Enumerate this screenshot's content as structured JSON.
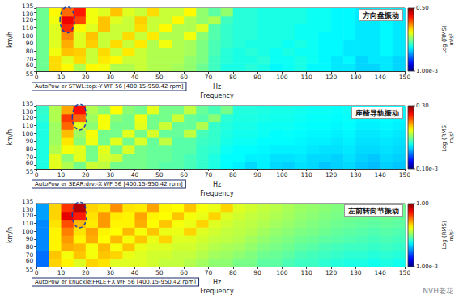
{
  "chart_data": [
    {
      "type": "heatmap",
      "title": "方向盘振动",
      "subtitle": "AutoPow er STWL:top:-Y WF 56 [400.15-950.42 rpm]",
      "xlabel": "Hz",
      "xlabel2": "Frequency",
      "ylabel": "km/h",
      "grid": false,
      "xlim": [
        0,
        150
      ],
      "xticks": [
        0,
        10,
        20,
        30,
        40,
        50,
        60,
        70,
        80,
        90,
        100,
        110,
        120,
        130,
        140,
        150
      ],
      "ylim": [
        55,
        135
      ],
      "yticks": [
        55,
        60,
        70,
        80,
        90,
        100,
        110,
        120,
        130,
        135
      ],
      "colorbar": {
        "label": "Log (RMS)",
        "unit": "m/s²",
        "range": [
          0.001,
          0.5
        ],
        "ticks": [
          {
            "value": 0.5,
            "label": "0.50"
          },
          {
            "value": 0.001,
            "label": "1.00e-3"
          }
        ]
      },
      "x_edges": [
        0,
        5,
        10,
        15,
        20,
        25,
        30,
        35,
        40,
        45,
        50,
        55,
        60,
        65,
        70,
        75,
        80,
        85,
        90,
        95,
        100,
        105,
        110,
        115,
        120,
        125,
        130,
        135,
        140,
        145,
        150
      ],
      "y_edges": [
        55,
        65,
        75,
        85,
        95,
        105,
        115,
        125,
        135
      ],
      "cells": [
        [
          0.02,
          0.06,
          0.05,
          0.03,
          0.05,
          0.045,
          0.03,
          0.03,
          0.035,
          0.03,
          0.03,
          0.028,
          0.025,
          0.02,
          0.015,
          0.012,
          0.012,
          0.013,
          0.012,
          0.01,
          0.011,
          0.012,
          0.01,
          0.01,
          0.009,
          0.009,
          0.008,
          0.008,
          0.009,
          0.008
        ],
        [
          0.02,
          0.06,
          0.04,
          0.06,
          0.035,
          0.055,
          0.05,
          0.035,
          0.035,
          0.03,
          0.03,
          0.03,
          0.025,
          0.022,
          0.015,
          0.013,
          0.012,
          0.012,
          0.013,
          0.011,
          0.011,
          0.012,
          0.011,
          0.01,
          0.009,
          0.01,
          0.008,
          0.009,
          0.009,
          0.008
        ],
        [
          0.02,
          0.045,
          0.07,
          0.065,
          0.035,
          0.06,
          0.035,
          0.055,
          0.035,
          0.03,
          0.03,
          0.03,
          0.028,
          0.022,
          0.016,
          0.013,
          0.012,
          0.013,
          0.012,
          0.011,
          0.012,
          0.011,
          0.011,
          0.01,
          0.01,
          0.009,
          0.009,
          0.009,
          0.01,
          0.009
        ],
        [
          0.02,
          0.04,
          0.08,
          0.04,
          0.065,
          0.035,
          0.06,
          0.035,
          0.055,
          0.03,
          0.045,
          0.03,
          0.028,
          0.022,
          0.016,
          0.014,
          0.013,
          0.012,
          0.012,
          0.012,
          0.011,
          0.012,
          0.011,
          0.01,
          0.01,
          0.009,
          0.009,
          0.009,
          0.01,
          0.009
        ],
        [
          0.02,
          0.04,
          0.1,
          0.04,
          0.07,
          0.035,
          0.035,
          0.06,
          0.035,
          0.055,
          0.03,
          0.03,
          0.045,
          0.024,
          0.017,
          0.014,
          0.013,
          0.013,
          0.012,
          0.012,
          0.012,
          0.011,
          0.011,
          0.01,
          0.01,
          0.01,
          0.009,
          0.009,
          0.01,
          0.009
        ],
        [
          0.02,
          0.04,
          0.18,
          0.05,
          0.04,
          0.07,
          0.035,
          0.035,
          0.06,
          0.035,
          0.05,
          0.03,
          0.03,
          0.04,
          0.017,
          0.014,
          0.013,
          0.013,
          0.012,
          0.012,
          0.012,
          0.011,
          0.011,
          0.011,
          0.01,
          0.01,
          0.009,
          0.009,
          0.01,
          0.009
        ],
        [
          0.02,
          0.045,
          0.25,
          0.15,
          0.045,
          0.07,
          0.04,
          0.035,
          0.065,
          0.035,
          0.035,
          0.05,
          0.03,
          0.025,
          0.03,
          0.015,
          0.013,
          0.013,
          0.012,
          0.012,
          0.012,
          0.012,
          0.011,
          0.011,
          0.01,
          0.01,
          0.009,
          0.009,
          0.01,
          0.009
        ],
        [
          0.02,
          0.05,
          0.12,
          0.2,
          0.045,
          0.04,
          0.07,
          0.04,
          0.035,
          0.06,
          0.035,
          0.035,
          0.05,
          0.025,
          0.018,
          0.025,
          0.013,
          0.013,
          0.012,
          0.012,
          0.012,
          0.012,
          0.011,
          0.011,
          0.01,
          0.01,
          0.009,
          0.009,
          0.01,
          0.009
        ]
      ]
    },
    {
      "type": "heatmap",
      "title": "座椅导轨振动",
      "subtitle": "AutoPow er SEAR:drv:-X WF 56 [400.15-950.42 rpm]",
      "xlabel": "Hz",
      "xlabel2": "Frequency",
      "ylabel": "km/h",
      "grid": false,
      "xlim": [
        0,
        150
      ],
      "xticks": [
        0,
        10,
        20,
        30,
        40,
        50,
        60,
        70,
        80,
        90,
        100,
        110,
        120,
        130,
        140,
        150
      ],
      "ylim": [
        55,
        135
      ],
      "yticks": [
        55,
        60,
        70,
        80,
        90,
        100,
        110,
        120,
        130,
        135
      ],
      "colorbar": {
        "label": "Log (RMS)",
        "unit": "m/s²",
        "range": [
          0.0001,
          0.3
        ],
        "ticks": [
          {
            "value": 0.3,
            "label": "0.30"
          },
          {
            "value": 0.0001,
            "label": "0.10e-3"
          }
        ]
      },
      "x_edges": [
        0,
        5,
        10,
        15,
        20,
        25,
        30,
        35,
        40,
        45,
        50,
        55,
        60,
        65,
        70,
        75,
        80,
        85,
        90,
        95,
        100,
        105,
        110,
        115,
        120,
        125,
        130,
        135,
        140,
        145,
        150
      ],
      "y_edges": [
        55,
        65,
        75,
        85,
        95,
        105,
        115,
        125,
        135
      ],
      "cells": [
        [
          0.0025,
          0.012,
          0.008,
          0.005,
          0.01,
          0.009,
          0.005,
          0.005,
          0.005,
          0.0045,
          0.004,
          0.004,
          0.0035,
          0.003,
          0.0025,
          0.002,
          0.0018,
          0.0015,
          0.0018,
          0.0015,
          0.0014,
          0.0016,
          0.0015,
          0.0013,
          0.0014,
          0.0015,
          0.0013,
          0.0012,
          0.0014,
          0.0013
        ],
        [
          0.0025,
          0.012,
          0.006,
          0.012,
          0.005,
          0.011,
          0.01,
          0.005,
          0.005,
          0.0045,
          0.0045,
          0.004,
          0.0035,
          0.003,
          0.0025,
          0.002,
          0.002,
          0.0018,
          0.0018,
          0.0016,
          0.0016,
          0.0017,
          0.0015,
          0.0015,
          0.0014,
          0.0016,
          0.0014,
          0.0013,
          0.0015,
          0.0014
        ],
        [
          0.0025,
          0.008,
          0.014,
          0.012,
          0.005,
          0.012,
          0.005,
          0.011,
          0.005,
          0.0045,
          0.0045,
          0.004,
          0.004,
          0.003,
          0.0028,
          0.0022,
          0.002,
          0.002,
          0.0019,
          0.0018,
          0.0018,
          0.0018,
          0.0017,
          0.0016,
          0.0016,
          0.0017,
          0.0015,
          0.0015,
          0.0016,
          0.0015
        ],
        [
          0.0025,
          0.007,
          0.018,
          0.006,
          0.013,
          0.005,
          0.012,
          0.005,
          0.011,
          0.0045,
          0.009,
          0.004,
          0.004,
          0.0032,
          0.003,
          0.0024,
          0.0022,
          0.0022,
          0.002,
          0.002,
          0.002,
          0.0019,
          0.0018,
          0.0018,
          0.0017,
          0.0018,
          0.0016,
          0.0016,
          0.0017,
          0.0016
        ],
        [
          0.0025,
          0.007,
          0.025,
          0.007,
          0.014,
          0.005,
          0.005,
          0.012,
          0.005,
          0.011,
          0.0045,
          0.0045,
          0.009,
          0.0035,
          0.003,
          0.0025,
          0.0023,
          0.0023,
          0.0022,
          0.002,
          0.0021,
          0.002,
          0.0019,
          0.0019,
          0.0018,
          0.0019,
          0.0017,
          0.0017,
          0.0018,
          0.0017
        ],
        [
          0.0025,
          0.007,
          0.05,
          0.012,
          0.006,
          0.014,
          0.005,
          0.005,
          0.012,
          0.005,
          0.01,
          0.0045,
          0.0045,
          0.008,
          0.003,
          0.0026,
          0.0024,
          0.0024,
          0.0022,
          0.0022,
          0.0022,
          0.0021,
          0.002,
          0.002,
          0.0019,
          0.002,
          0.0018,
          0.0018,
          0.0019,
          0.0018
        ],
        [
          0.0028,
          0.008,
          0.07,
          0.05,
          0.007,
          0.014,
          0.006,
          0.005,
          0.013,
          0.005,
          0.005,
          0.01,
          0.0045,
          0.004,
          0.006,
          0.0028,
          0.0025,
          0.0025,
          0.0024,
          0.0023,
          0.0023,
          0.0022,
          0.0021,
          0.0021,
          0.002,
          0.0021,
          0.0019,
          0.0019,
          0.002,
          0.0019
        ],
        [
          0.003,
          0.008,
          0.03,
          0.1,
          0.008,
          0.006,
          0.015,
          0.006,
          0.005,
          0.012,
          0.005,
          0.005,
          0.009,
          0.0045,
          0.0035,
          0.005,
          0.0026,
          0.0026,
          0.0025,
          0.0024,
          0.0024,
          0.0023,
          0.0022,
          0.0022,
          0.0021,
          0.0022,
          0.002,
          0.002,
          0.0021,
          0.002
        ]
      ]
    },
    {
      "type": "heatmap",
      "title": "左前转向节振动",
      "subtitle": "AutoPow er knuckle:FRLE+X WF 56 [400.15-950.42 rpm]",
      "xlabel": "Hz",
      "xlabel2": "Frequency",
      "ylabel": "km/h",
      "grid": false,
      "xlim": [
        0,
        150
      ],
      "xticks": [
        0,
        10,
        20,
        30,
        40,
        50,
        60,
        70,
        80,
        90,
        100,
        110,
        120,
        130,
        140,
        150
      ],
      "ylim": [
        55,
        135
      ],
      "yticks": [
        55,
        60,
        70,
        80,
        90,
        100,
        110,
        120,
        130,
        135
      ],
      "colorbar": {
        "label": "Log (RMS)",
        "unit": "m/s²",
        "range": [
          0.001,
          1
        ],
        "ticks": [
          {
            "value": 1,
            "label": "1.00"
          },
          {
            "value": 0.001,
            "label": "1.00e-3"
          }
        ]
      },
      "x_edges": [
        0,
        5,
        10,
        15,
        20,
        25,
        30,
        35,
        40,
        45,
        50,
        55,
        60,
        65,
        70,
        75,
        80,
        85,
        90,
        95,
        100,
        105,
        110,
        115,
        120,
        125,
        130,
        135,
        140,
        145,
        150
      ],
      "y_edges": [
        55,
        65,
        75,
        85,
        95,
        105,
        115,
        125,
        135
      ],
      "cells": [
        [
          0.005,
          0.1,
          0.08,
          0.06,
          0.1,
          0.09,
          0.06,
          0.06,
          0.06,
          0.055,
          0.05,
          0.05,
          0.045,
          0.04,
          0.035,
          0.035,
          0.03,
          0.03,
          0.025,
          0.025,
          0.022,
          0.02,
          0.02,
          0.018,
          0.017,
          0.016,
          0.016,
          0.015,
          0.016,
          0.015
        ],
        [
          0.005,
          0.11,
          0.07,
          0.11,
          0.07,
          0.11,
          0.1,
          0.065,
          0.06,
          0.055,
          0.055,
          0.05,
          0.05,
          0.045,
          0.04,
          0.038,
          0.035,
          0.032,
          0.028,
          0.027,
          0.025,
          0.022,
          0.021,
          0.02,
          0.019,
          0.018,
          0.018,
          0.017,
          0.018,
          0.017
        ],
        [
          0.006,
          0.08,
          0.13,
          0.12,
          0.07,
          0.12,
          0.07,
          0.11,
          0.065,
          0.06,
          0.06,
          0.055,
          0.055,
          0.05,
          0.045,
          0.042,
          0.04,
          0.036,
          0.032,
          0.03,
          0.028,
          0.025,
          0.024,
          0.022,
          0.021,
          0.02,
          0.02,
          0.019,
          0.02,
          0.019
        ],
        [
          0.006,
          0.08,
          0.15,
          0.08,
          0.13,
          0.075,
          0.12,
          0.07,
          0.11,
          0.065,
          0.1,
          0.06,
          0.06,
          0.055,
          0.05,
          0.048,
          0.045,
          0.04,
          0.036,
          0.033,
          0.031,
          0.028,
          0.027,
          0.025,
          0.024,
          0.023,
          0.022,
          0.021,
          0.022,
          0.021
        ],
        [
          0.006,
          0.08,
          0.18,
          0.09,
          0.14,
          0.08,
          0.075,
          0.12,
          0.07,
          0.11,
          0.065,
          0.065,
          0.1,
          0.06,
          0.055,
          0.05,
          0.048,
          0.045,
          0.04,
          0.036,
          0.034,
          0.031,
          0.03,
          0.028,
          0.026,
          0.025,
          0.024,
          0.023,
          0.024,
          0.023
        ],
        [
          0.006,
          0.09,
          0.25,
          0.12,
          0.085,
          0.15,
          0.08,
          0.08,
          0.13,
          0.075,
          0.11,
          0.07,
          0.065,
          0.1,
          0.06,
          0.055,
          0.05,
          0.048,
          0.044,
          0.04,
          0.037,
          0.034,
          0.032,
          0.03,
          0.028,
          0.027,
          0.026,
          0.025,
          0.026,
          0.025
        ],
        [
          0.007,
          0.1,
          0.5,
          0.35,
          0.09,
          0.15,
          0.085,
          0.08,
          0.14,
          0.08,
          0.075,
          0.11,
          0.07,
          0.065,
          0.1,
          0.06,
          0.055,
          0.05,
          0.047,
          0.043,
          0.04,
          0.036,
          0.034,
          0.032,
          0.03,
          0.029,
          0.028,
          0.027,
          0.028,
          0.027
        ],
        [
          0.007,
          0.1,
          0.3,
          0.7,
          0.1,
          0.09,
          0.16,
          0.09,
          0.085,
          0.14,
          0.08,
          0.075,
          0.11,
          0.07,
          0.065,
          0.1,
          0.06,
          0.055,
          0.05,
          0.046,
          0.042,
          0.038,
          0.036,
          0.034,
          0.032,
          0.03,
          0.029,
          0.028,
          0.029,
          0.028
        ]
      ]
    }
  ],
  "watermark": "NVH老花"
}
